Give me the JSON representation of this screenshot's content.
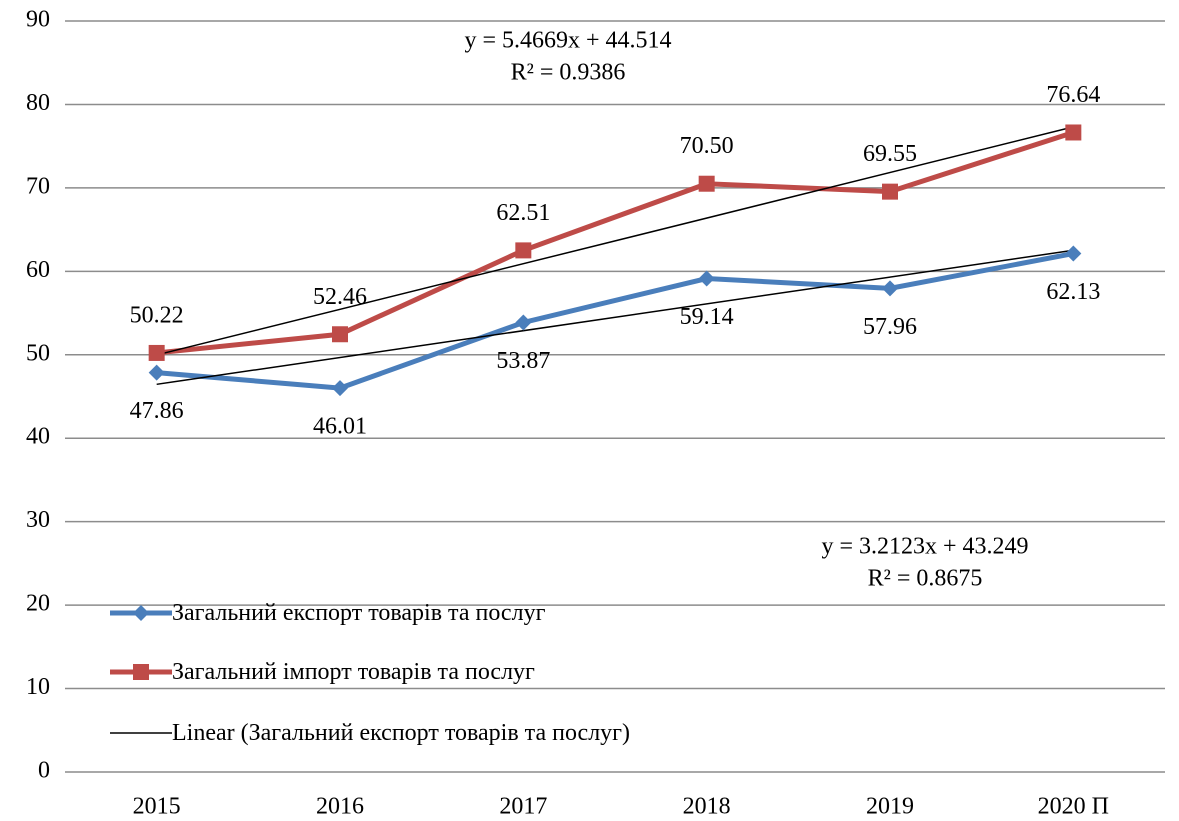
{
  "chart_data": {
    "type": "line",
    "categories": [
      "2015",
      "2016",
      "2017",
      "2018",
      "2019",
      "2020 П"
    ],
    "series": [
      {
        "name": "Загальний експорт товарів та послуг",
        "color": "#4a7ebb",
        "marker": "diamond",
        "values": [
          47.86,
          46.01,
          53.87,
          59.14,
          57.96,
          62.13
        ],
        "value_labels": [
          "47.86",
          "46.01",
          "53.87",
          "59.14",
          "57.96",
          "62.13"
        ]
      },
      {
        "name": "Загальний імпорт товарів та послуг",
        "color": "#be4b48",
        "marker": "square",
        "values": [
          50.22,
          52.46,
          62.51,
          70.5,
          69.55,
          76.64
        ],
        "value_labels": [
          "50.22",
          "52.46",
          "62.51",
          "70.50",
          "69.55",
          "76.64"
        ]
      }
    ],
    "trendlines": [
      {
        "series": 0,
        "name": "Linear (Загальний експорт товарів та послуг)",
        "slope": 3.2123,
        "intercept": 43.249,
        "equation": "y = 3.2123x + 43.249",
        "r2": "R² = 0.8675"
      },
      {
        "series": 1,
        "slope": 5.4669,
        "intercept": 44.514,
        "equation": "y = 5.4669x + 44.514",
        "r2": "R² = 0.9386"
      }
    ],
    "ylim": [
      0,
      90
    ],
    "yticks": [
      0,
      10,
      20,
      30,
      40,
      50,
      60,
      70,
      80,
      90
    ],
    "grid": true
  }
}
